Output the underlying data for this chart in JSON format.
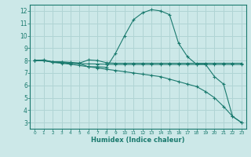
{
  "xlabel": "Humidex (Indice chaleur)",
  "bg_color": "#cce8e8",
  "grid_color": "#b0d4d4",
  "line_color": "#1a7a6e",
  "xlim": [
    -0.5,
    23.5
  ],
  "ylim": [
    2.5,
    12.5
  ],
  "x_ticks": [
    0,
    1,
    2,
    3,
    4,
    5,
    6,
    7,
    8,
    9,
    10,
    11,
    12,
    13,
    14,
    15,
    16,
    17,
    18,
    19,
    20,
    21,
    22,
    23
  ],
  "y_ticks": [
    3,
    4,
    5,
    6,
    7,
    8,
    9,
    10,
    11,
    12
  ],
  "series": [
    {
      "x": [
        0,
        1,
        2,
        3,
        4,
        5,
        6,
        7,
        8,
        9,
        10,
        11,
        12,
        13,
        14,
        15,
        16,
        17,
        18,
        19,
        20,
        21,
        22,
        23
      ],
      "y": [
        8.0,
        8.05,
        7.9,
        7.9,
        7.85,
        7.8,
        8.05,
        8.0,
        7.82,
        7.78,
        7.78,
        7.78,
        7.78,
        7.78,
        7.78,
        7.78,
        7.78,
        7.78,
        7.78,
        7.78,
        7.78,
        7.78,
        7.78,
        7.78
      ]
    },
    {
      "x": [
        0,
        1,
        2,
        3,
        4,
        5,
        6,
        7,
        8,
        9,
        10,
        11,
        12,
        13,
        14,
        15,
        16,
        17,
        18,
        19,
        20,
        21,
        22,
        23
      ],
      "y": [
        8.0,
        8.0,
        7.88,
        7.82,
        7.78,
        7.75,
        7.73,
        7.72,
        7.7,
        7.68,
        7.68,
        7.68,
        7.68,
        7.68,
        7.68,
        7.68,
        7.68,
        7.68,
        7.68,
        7.68,
        7.68,
        7.68,
        7.68,
        7.68
      ]
    },
    {
      "x": [
        0,
        1,
        2,
        3,
        4,
        5,
        6,
        7,
        8,
        9,
        10,
        11,
        12,
        13,
        14,
        15,
        16,
        17,
        18,
        19,
        20,
        21,
        22,
        23
      ],
      "y": [
        8.0,
        8.0,
        7.9,
        7.85,
        7.8,
        7.75,
        7.5,
        7.5,
        7.45,
        8.6,
        10.0,
        11.3,
        11.85,
        12.1,
        12.0,
        11.7,
        9.4,
        8.3,
        7.7,
        7.7,
        6.7,
        6.1,
        3.5,
        3.0
      ]
    },
    {
      "x": [
        0,
        1,
        2,
        3,
        4,
        5,
        6,
        7,
        8,
        9,
        10,
        11,
        12,
        13,
        14,
        15,
        16,
        17,
        18,
        19,
        20,
        21,
        22,
        23
      ],
      "y": [
        8.0,
        8.0,
        7.85,
        7.78,
        7.7,
        7.6,
        7.5,
        7.4,
        7.3,
        7.2,
        7.1,
        7.0,
        6.9,
        6.8,
        6.7,
        6.5,
        6.3,
        6.1,
        5.9,
        5.5,
        5.0,
        4.3,
        3.5,
        3.0
      ]
    }
  ]
}
